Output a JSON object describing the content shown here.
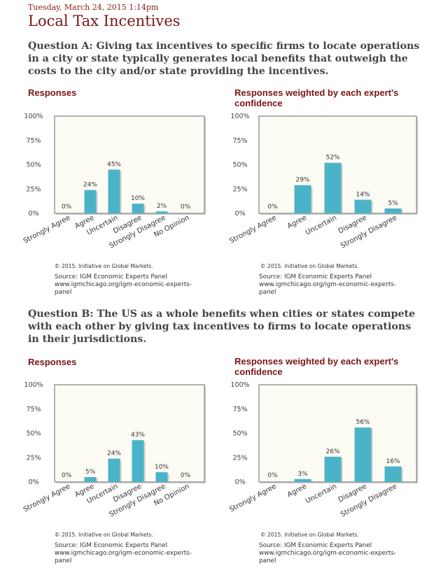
{
  "header": {
    "date": "Tuesday, March 24, 2015 1:14pm",
    "title": "Local Tax Incentives"
  },
  "questions": [
    {
      "text": "Question A: Giving tax incentives to specific firms to locate operations in a city or state typically generates local benefits that outweigh the costs to the city and/or state providing the incentives."
    },
    {
      "text": "Question B: The US as a whole benefits when cities or states compete with each other by giving tax incentives to firms to locate operations in their jurisdictions."
    }
  ],
  "footer": {
    "copyright": "© 2015. Initiative on Global Markets.",
    "source_line1": "Source: IGM Economic Experts Panel",
    "source_line2": "www.igmchicago.org/igm-economic-experts-",
    "source_line3": "panel"
  },
  "colors": {
    "bar": "#4bb3c8",
    "plot_bg": "#fdfcf4",
    "frame": "#999999"
  },
  "chart_data": [
    {
      "type": "bar",
      "title": "Responses",
      "categories": [
        "Strongly Agree",
        "Agree",
        "Uncertain",
        "Disagree",
        "Strongly Disagree",
        "No Opinion"
      ],
      "values": [
        0,
        24,
        45,
        10,
        2,
        0
      ],
      "labels": [
        "0%",
        "24%",
        "45%",
        "10%",
        "2%",
        "0%"
      ],
      "yticks": [
        "0%",
        "25%",
        "50%",
        "75%",
        "100%"
      ],
      "ylim": [
        0,
        100
      ]
    },
    {
      "type": "bar",
      "title": "Responses weighted by each expert's confidence",
      "categories": [
        "Strongly Agree",
        "Agree",
        "Uncertain",
        "Disagree",
        "Strongly Disagree"
      ],
      "values": [
        0,
        29,
        52,
        14,
        5
      ],
      "labels": [
        "0%",
        "29%",
        "52%",
        "14%",
        "5%"
      ],
      "yticks": [
        "0%",
        "25%",
        "50%",
        "75%",
        "100%"
      ],
      "ylim": [
        0,
        100
      ]
    },
    {
      "type": "bar",
      "title": "Responses",
      "categories": [
        "Strongly Agree",
        "Agree",
        "Uncertain",
        "Disagree",
        "Strongly Disagree",
        "No Opinion"
      ],
      "values": [
        0,
        5,
        24,
        43,
        10,
        0
      ],
      "labels": [
        "0%",
        "5%",
        "24%",
        "43%",
        "10%",
        "0%"
      ],
      "yticks": [
        "0%",
        "25%",
        "50%",
        "75%",
        "100%"
      ],
      "ylim": [
        0,
        100
      ]
    },
    {
      "type": "bar",
      "title": "Responses weighted by each expert's confidence",
      "categories": [
        "Strongly Agree",
        "Agree",
        "Uncertain",
        "Disagree",
        "Strongly Disagree"
      ],
      "values": [
        0,
        3,
        26,
        56,
        16
      ],
      "labels": [
        "0%",
        "3%",
        "26%",
        "56%",
        "16%"
      ],
      "yticks": [
        "0%",
        "25%",
        "50%",
        "75%",
        "100%"
      ],
      "ylim": [
        0,
        100
      ]
    }
  ]
}
